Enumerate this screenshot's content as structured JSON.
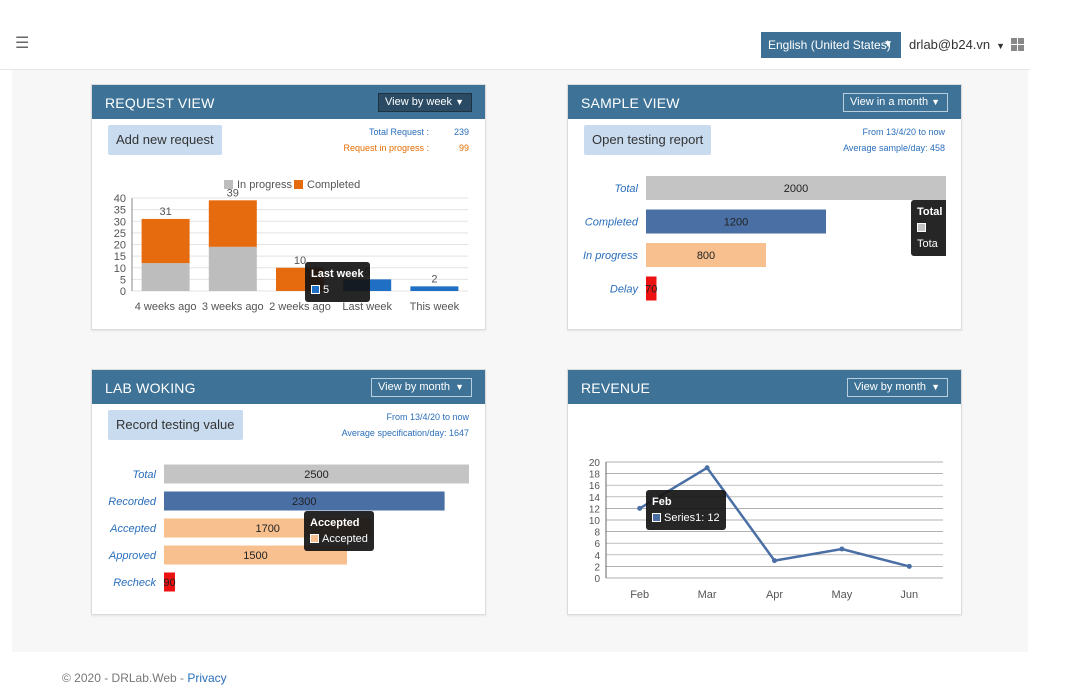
{
  "header": {
    "language": "English (United States)",
    "user": "drlab@b24.vn"
  },
  "request_view": {
    "title": "REQUEST VIEW",
    "view_select": "View by week",
    "add_button": "Add new request",
    "total_label": "Total Request :",
    "total_value": "239",
    "progress_label": "Request in progress :",
    "progress_value": "99",
    "tooltip": {
      "title": "Last week",
      "value": "5"
    }
  },
  "sample_view": {
    "title": "SAMPLE VIEW",
    "view_select": "View in a month",
    "report_button": "Open testing report",
    "from_text": "From 13/4/20 to now",
    "avg_text": "Average sample/day: 458",
    "tooltip": {
      "title": "Total",
      "value": "Tota"
    }
  },
  "lab_working": {
    "title": "LAB WOKING",
    "view_select": "View by month",
    "record_button": "Record testing value",
    "from_text": "From 13/4/20 to now",
    "avg_text": "Average specification/day: 1647",
    "tooltip": {
      "title": "Accepted",
      "value": "Accepted"
    }
  },
  "revenue": {
    "title": "REVENUE",
    "view_select": "View by month",
    "tooltip": {
      "title": "Feb",
      "value": "Series1: 12"
    }
  },
  "footer": {
    "copyright": "© 2020 - DRLab.Web - ",
    "privacy": "Privacy"
  },
  "colors": {
    "header_blue": "#3e7397",
    "in_progress": "#bdbdbd",
    "completed": "#e56b0e",
    "last_week": "#1f6fc4",
    "total": "#c4c4c4",
    "blue": "#4a6fa5",
    "peach": "#f7c08e",
    "red": "#ee1111"
  },
  "chart_data": [
    {
      "type": "bar",
      "stacked": true,
      "categories": [
        "4 weeks ago",
        "3 weeks ago",
        "2 weeks ago",
        "Last week",
        "This week"
      ],
      "series": [
        {
          "name": "In progress",
          "values": [
            12,
            19,
            0,
            0,
            0
          ]
        },
        {
          "name": "Completed",
          "values": [
            19,
            20,
            10,
            5,
            2
          ]
        }
      ],
      "totals": [
        31,
        39,
        10,
        5,
        2
      ],
      "ylim": [
        0,
        40
      ],
      "yticks": [
        0,
        5,
        10,
        15,
        20,
        25,
        30,
        35,
        40
      ],
      "legend": "top"
    },
    {
      "type": "bar",
      "orientation": "horizontal",
      "categories": [
        "Total",
        "Completed",
        "In progress",
        "Delay"
      ],
      "values": [
        2000,
        1200,
        800,
        70
      ],
      "labels": [
        "2000",
        "1200",
        "800",
        "70"
      ],
      "xlim": [
        0,
        2000
      ]
    },
    {
      "type": "bar",
      "orientation": "horizontal",
      "categories": [
        "Total",
        "Recorded",
        "Accepted",
        "Approved",
        "Recheck"
      ],
      "values": [
        2500,
        2300,
        1700,
        1500,
        90
      ],
      "labels": [
        "2500",
        "2300",
        "1700",
        "1500",
        "90"
      ],
      "xlim": [
        0,
        2500
      ]
    },
    {
      "type": "line",
      "x": [
        "Feb",
        "Mar",
        "Apr",
        "May",
        "Jun"
      ],
      "series": [
        {
          "name": "Series1",
          "values": [
            12,
            19,
            3,
            5,
            2
          ]
        }
      ],
      "ylim": [
        0,
        20
      ],
      "yticks": [
        0,
        2,
        4,
        6,
        8,
        10,
        12,
        14,
        16,
        18,
        20
      ],
      "grid": true
    }
  ]
}
